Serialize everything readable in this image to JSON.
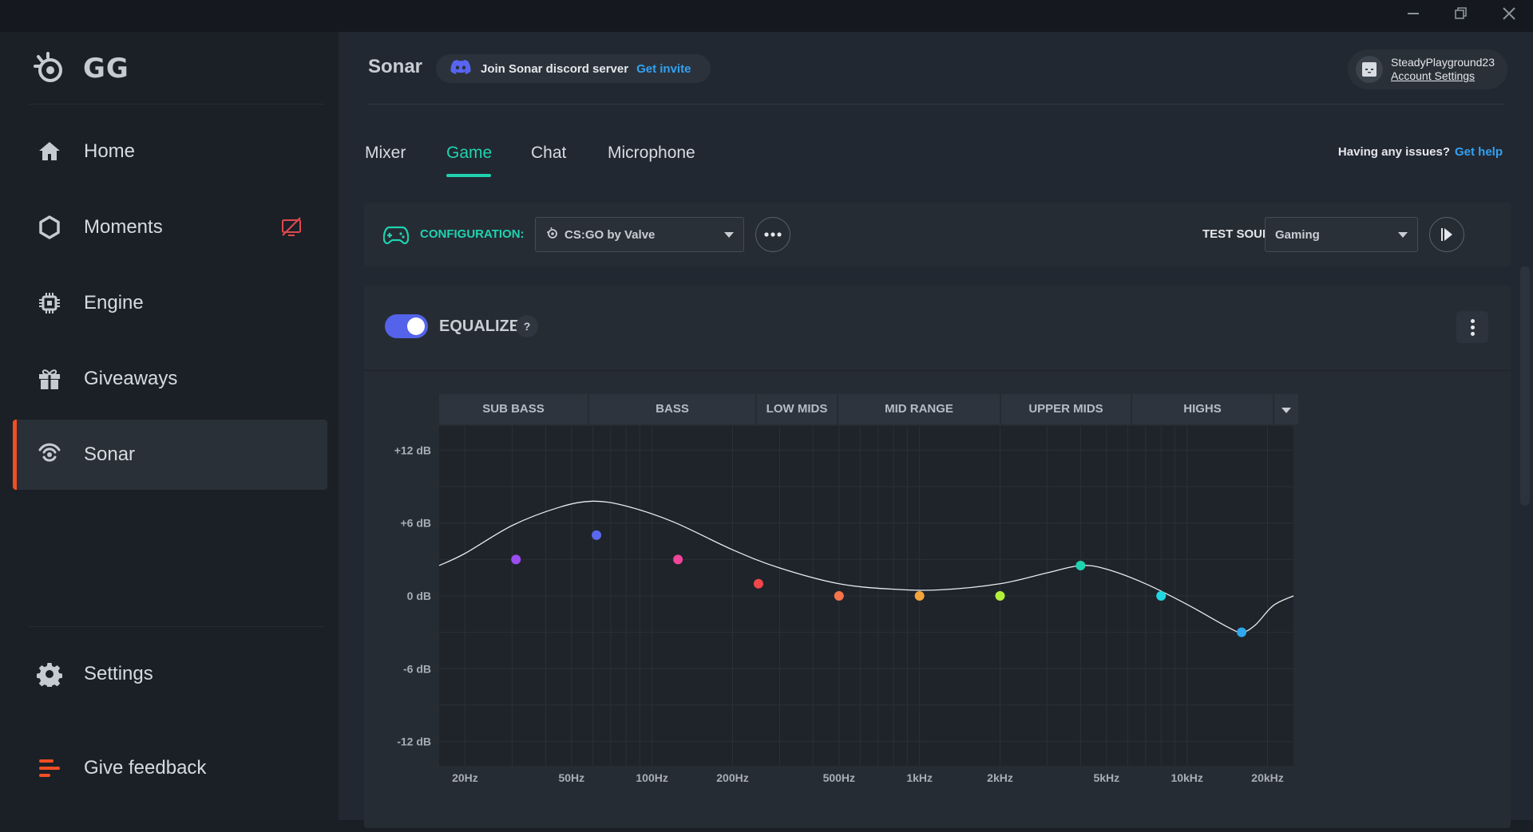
{
  "window": {
    "minimize_icon": "minimize-icon",
    "restore_icon": "restore-icon",
    "close_icon": "close-icon"
  },
  "sidebar": {
    "logo_text": "GG",
    "items": [
      {
        "label": "Home",
        "icon": "home-icon"
      },
      {
        "label": "Moments",
        "icon": "hexagon-icon",
        "badge_icon": "screen-off-icon"
      },
      {
        "label": "Engine",
        "icon": "chip-icon"
      },
      {
        "label": "Giveaways",
        "icon": "gift-icon"
      },
      {
        "label": "Sonar",
        "icon": "sonar-icon",
        "active": true
      }
    ],
    "bottom": [
      {
        "label": "Settings",
        "icon": "gear-icon"
      },
      {
        "label": "Give feedback",
        "icon": "feedback-icon"
      }
    ]
  },
  "header": {
    "title": "Sonar",
    "discord_text": "Join Sonar discord server",
    "discord_link": "Get invite",
    "account_name": "SteadyPlayground23",
    "account_link": "Account Settings"
  },
  "tabs": [
    "Mixer",
    "Game",
    "Chat",
    "Microphone"
  ],
  "active_tab": "Game",
  "help": {
    "text": "Having any issues?",
    "link": "Get help"
  },
  "config": {
    "label": "CONFIGURATION:",
    "value": "CS:GO by Valve",
    "test_sound_label": "TEST SOUND",
    "test_sound_value": "Gaming"
  },
  "equalizer": {
    "title": "EQUALIZER",
    "help_badge": "?",
    "enabled": true,
    "bands": [
      "SUB BASS",
      "BASS",
      "LOW MIDS",
      "MID RANGE",
      "UPPER MIDS",
      "HIGHS"
    ]
  },
  "chart_data": {
    "type": "line",
    "x_scale": "log",
    "xlim": [
      16,
      25000
    ],
    "ylim": [
      -14,
      14
    ],
    "y_ticks": [
      12,
      6,
      0,
      -6,
      -12
    ],
    "y_tick_labels": [
      "+12 dB",
      "+6 dB",
      "0 dB",
      "-6 dB",
      "-12 dB"
    ],
    "x_ticks": [
      20,
      50,
      100,
      200,
      500,
      1000,
      2000,
      5000,
      10000,
      20000
    ],
    "x_tick_labels": [
      "20Hz",
      "50Hz",
      "100Hz",
      "200Hz",
      "500Hz",
      "1kHz",
      "2kHz",
      "5kHz",
      "10kHz",
      "20kHz"
    ],
    "points": [
      {
        "x": 31,
        "y": 3,
        "color": "#9b4df0"
      },
      {
        "x": 62,
        "y": 5,
        "color": "#5a68f0"
      },
      {
        "x": 125,
        "y": 3,
        "color": "#f0459b"
      },
      {
        "x": 250,
        "y": 1,
        "color": "#f0484a"
      },
      {
        "x": 500,
        "y": 0,
        "color": "#f5734a"
      },
      {
        "x": 1000,
        "y": 0,
        "color": "#f5a43a"
      },
      {
        "x": 2000,
        "y": 0,
        "color": "#b2ef3a"
      },
      {
        "x": 4000,
        "y": 2.5,
        "color": "#1fd3b0"
      },
      {
        "x": 8000,
        "y": 0,
        "color": "#21d7e0"
      },
      {
        "x": 16000,
        "y": -3,
        "color": "#2fa8f0"
      }
    ],
    "curve": [
      [
        16,
        2.5
      ],
      [
        20,
        3.5
      ],
      [
        30,
        5.8
      ],
      [
        45,
        7.3
      ],
      [
        60,
        7.8
      ],
      [
        80,
        7.4
      ],
      [
        120,
        6.1
      ],
      [
        200,
        3.8
      ],
      [
        300,
        2.3
      ],
      [
        500,
        1.0
      ],
      [
        800,
        0.55
      ],
      [
        1200,
        0.5
      ],
      [
        2000,
        1.0
      ],
      [
        3000,
        1.9
      ],
      [
        4000,
        2.5
      ],
      [
        5000,
        2.2
      ],
      [
        7000,
        1.0
      ],
      [
        10000,
        -0.7
      ],
      [
        14000,
        -2.5
      ],
      [
        16000,
        -3.0
      ],
      [
        18000,
        -2.4
      ],
      [
        21000,
        -0.8
      ],
      [
        25000,
        0
      ]
    ],
    "grid": true,
    "curve_color": "#e9ebee"
  }
}
